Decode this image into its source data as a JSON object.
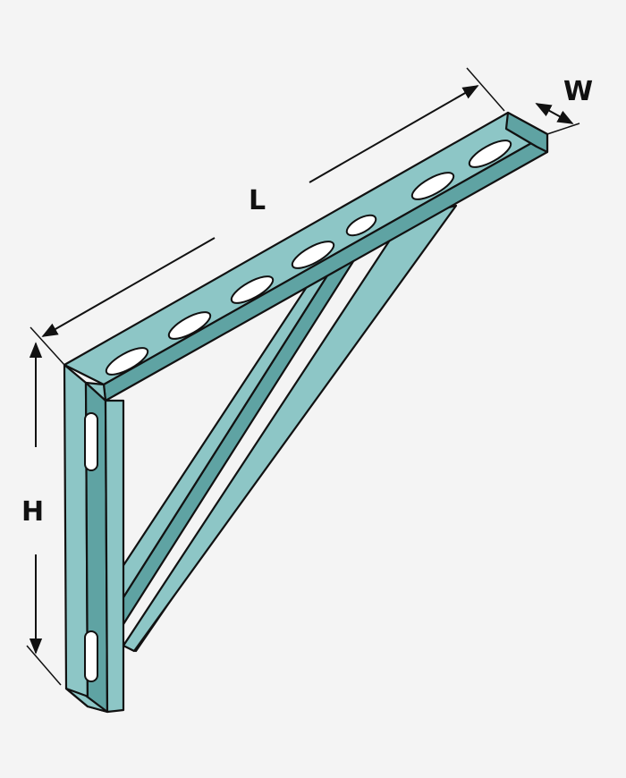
{
  "labels": {
    "length": "L",
    "width": "W",
    "height": "H"
  },
  "colors": {
    "background": "#f4f4f4",
    "steel": "#8dc6c6",
    "steel_shadow": "#5fa3a3",
    "outline": "#111111",
    "slot": "#ffffff"
  }
}
